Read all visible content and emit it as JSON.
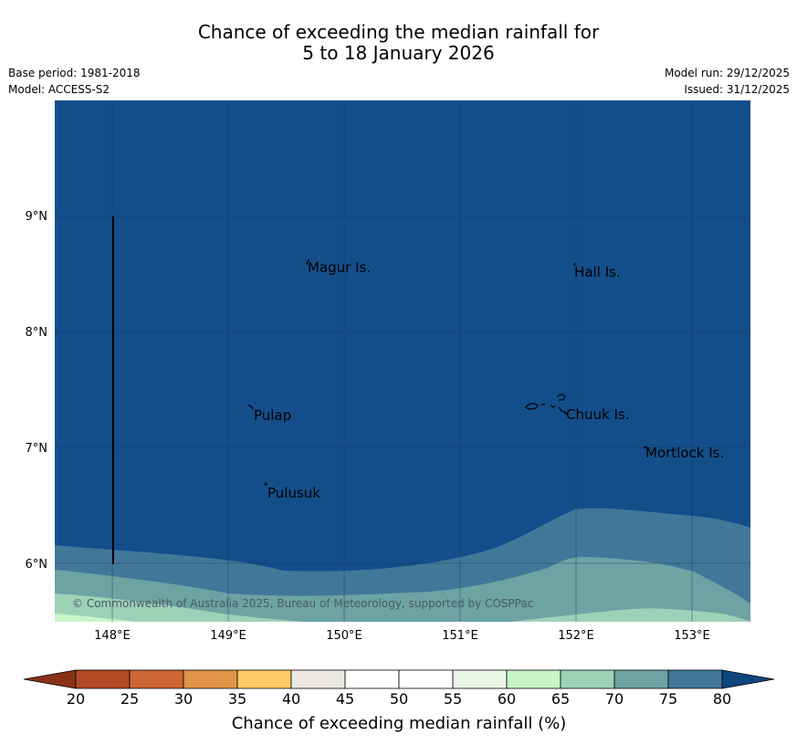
{
  "title": {
    "line1": "Chance of exceeding the median rainfall for",
    "line2": "5 to 18 January 2026"
  },
  "meta": {
    "base_period": "Base period: 1981-2018",
    "model": "Model: ACCESS-S2",
    "model_run": "Model run: 29/12/2025",
    "issued": "Issued: 31/12/2025"
  },
  "map": {
    "lon_labels": [
      "148°E",
      "149°E",
      "150°E",
      "151°E",
      "152°E",
      "153°E"
    ],
    "lat_labels": [
      "9°N",
      "8°N",
      "7°N",
      "6°N"
    ],
    "places": [
      "Magur Is.",
      "Hall Is.",
      "Pulap",
      "Chuuk Is.",
      "Mortlock Is.",
      "Pulusuk"
    ],
    "copyright": "© Commonwealth of Australia 2025, Bureau of Meteorology, supported by COSPPac",
    "colors": {
      "band_80_plus": "#134e8a",
      "band_75_80": "#417899",
      "band_70_75": "#6da3a3",
      "band_65_70": "#9dd1b8",
      "band_60_65": "#c8f5c8"
    }
  },
  "colorbar": {
    "ticks": [
      "20",
      "25",
      "30",
      "35",
      "40",
      "45",
      "50",
      "55",
      "60",
      "65",
      "70",
      "75",
      "80"
    ],
    "title": "Chance of exceeding median rainfall (%)",
    "low_extend_color": "#8a3218",
    "high_extend_color": "#0f4680",
    "segment_colors": [
      "#b24a25",
      "#cc6632",
      "#e09447",
      "#fdc966",
      "#ece9e4",
      "#ffffff",
      "#ffffff",
      "#e8f5e8",
      "#c8f5c8",
      "#9dd1b8",
      "#6da3a3",
      "#417899"
    ]
  }
}
